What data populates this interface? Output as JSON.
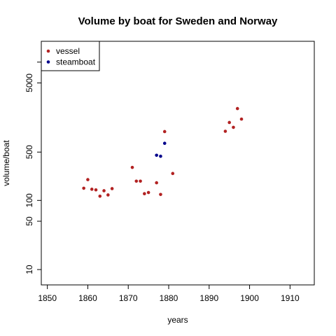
{
  "chart_data": {
    "type": "scatter",
    "title": "Volume by boat for Sweden and Norway",
    "xlabel": "years",
    "ylabel": "volume/boat",
    "xlim": [
      1848.5,
      1916
    ],
    "ylim": [
      6,
      20000
    ],
    "y_scale": "log",
    "x_ticks": [
      1850,
      1860,
      1870,
      1880,
      1890,
      1900,
      1910
    ],
    "x_tick_labels": [
      "1850",
      "1860",
      "1870",
      "1880",
      "1890",
      "1900",
      "1910"
    ],
    "y_ticks": [
      10,
      50,
      100,
      500,
      5000
    ],
    "y_tick_labels": [
      "10",
      "50",
      "100",
      "500",
      "5000"
    ],
    "y_extra_ticks": [
      10000
    ],
    "grid": false,
    "legend_position": "top-left",
    "series": [
      {
        "name": "vessel",
        "color": "#b22222",
        "points": [
          [
            1859,
            150
          ],
          [
            1860,
            200
          ],
          [
            1861,
            145
          ],
          [
            1862,
            142
          ],
          [
            1863,
            115
          ],
          [
            1864,
            138
          ],
          [
            1865,
            120
          ],
          [
            1866,
            148
          ],
          [
            1871,
            300
          ],
          [
            1872,
            190
          ],
          [
            1873,
            190
          ],
          [
            1874,
            125
          ],
          [
            1875,
            130
          ],
          [
            1877,
            180
          ],
          [
            1878,
            122
          ],
          [
            1879,
            990
          ],
          [
            1881,
            245
          ],
          [
            1894,
            1000
          ],
          [
            1895,
            1340
          ],
          [
            1896,
            1140
          ],
          [
            1897,
            2130
          ],
          [
            1898,
            1500
          ]
        ]
      },
      {
        "name": "steamboat",
        "color": "#00008b",
        "points": [
          [
            1877,
            450
          ],
          [
            1878,
            435
          ],
          [
            1879,
            670
          ]
        ]
      }
    ]
  }
}
